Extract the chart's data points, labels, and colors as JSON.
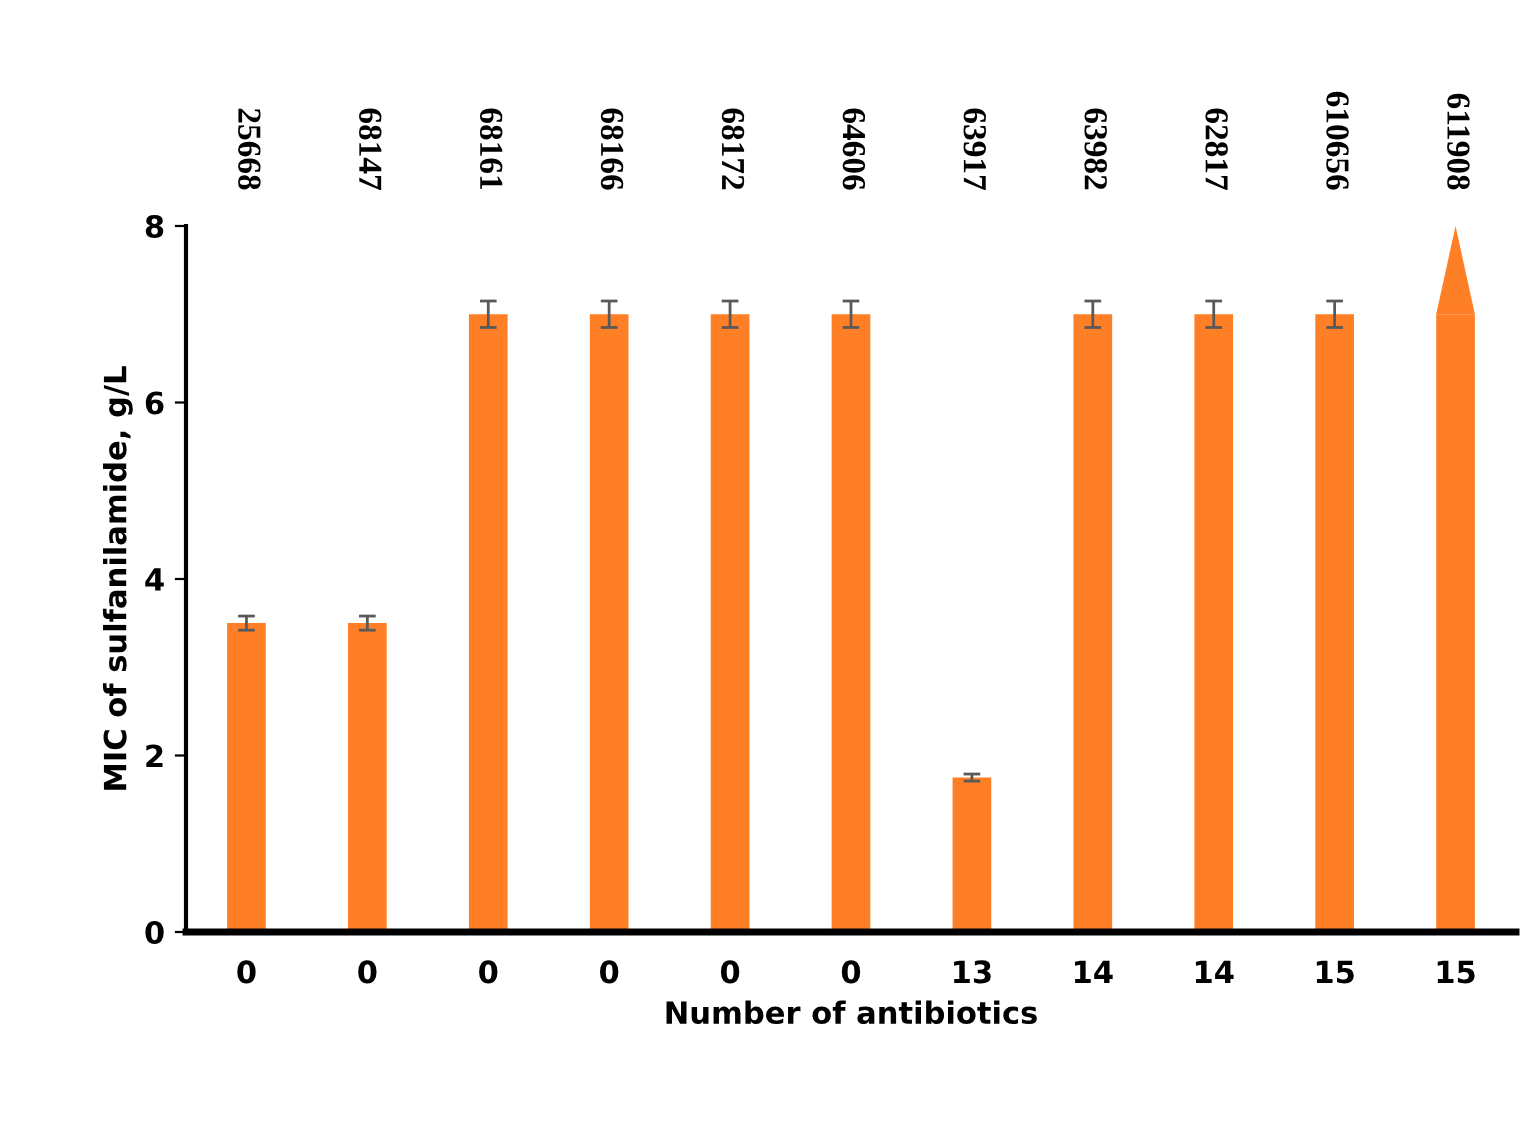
{
  "chart_data": {
    "type": "bar",
    "xlabel": "Number of antibiotics",
    "ylabel": "MIC of sulfanilamide, g/L",
    "categories": [
      "0",
      "0",
      "0",
      "0",
      "0",
      "0",
      "13",
      "14",
      "14",
      "15",
      "15"
    ],
    "values": [
      3.5,
      3.5,
      7,
      7,
      7,
      7,
      1.75,
      7,
      7,
      7,
      7
    ],
    "errors": [
      0.08,
      0.08,
      0.15,
      0.15,
      0.15,
      0.15,
      0.04,
      0.15,
      0.15,
      0.15,
      null
    ],
    "color": "#ff7f27",
    "annotations": [
      "25668",
      "68147",
      "68161",
      "68166",
      "68172",
      "64606",
      "63917",
      "63982",
      "62817",
      "610656",
      "611908"
    ],
    "ylim": [
      0,
      8
    ],
    "yticks": [
      0,
      2,
      4,
      6,
      8
    ],
    "grid": false,
    "legend": false
  }
}
